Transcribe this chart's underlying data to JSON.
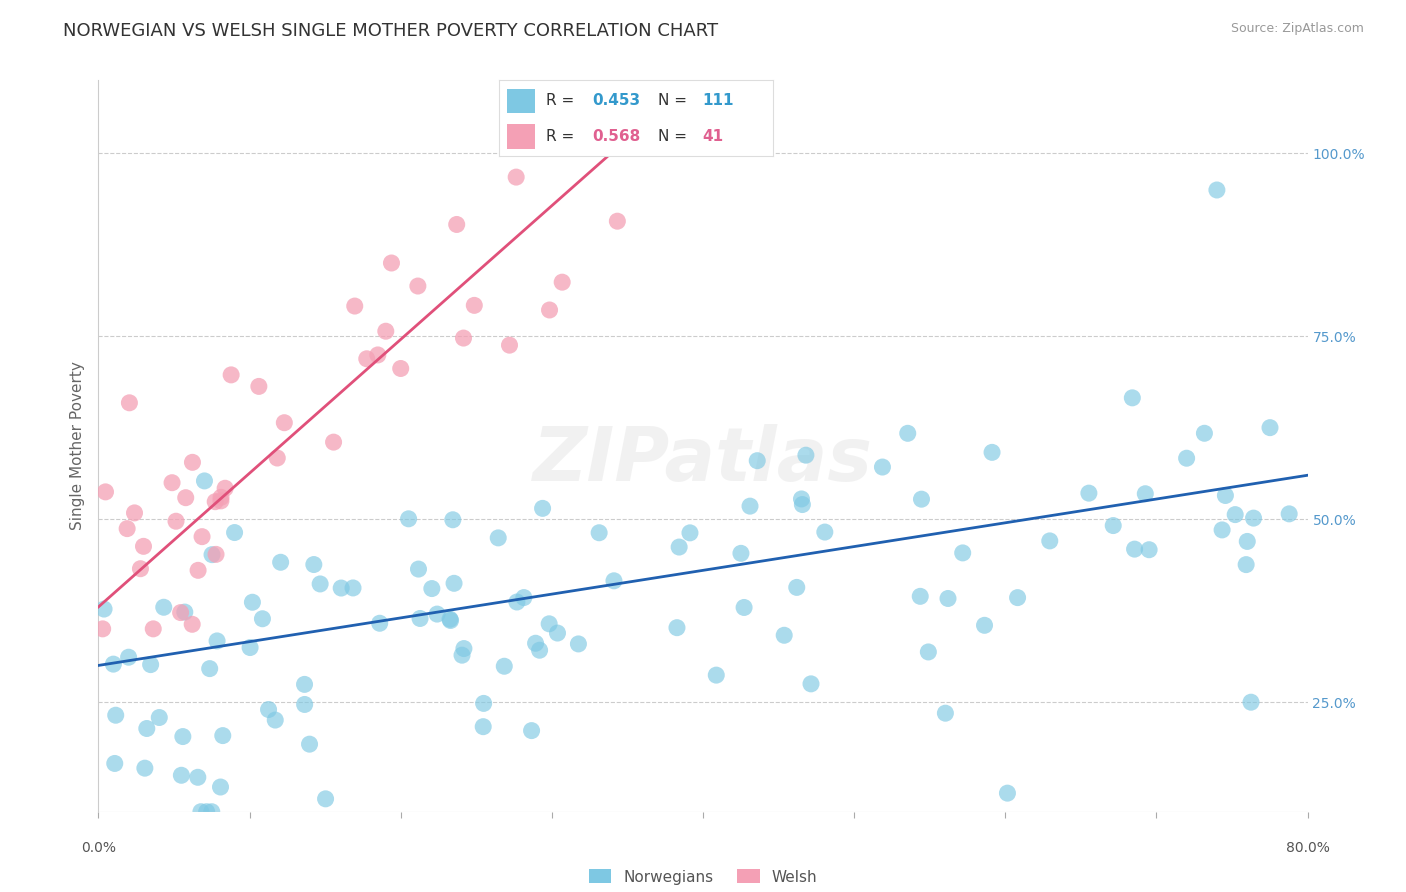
{
  "title": "NORWEGIAN VS WELSH SINGLE MOTHER POVERTY CORRELATION CHART",
  "source": "Source: ZipAtlas.com",
  "ylabel": "Single Mother Poverty",
  "y_ticks_right": [
    0.25,
    0.5,
    0.75,
    1.0
  ],
  "y_tick_labels_right": [
    "25.0%",
    "50.0%",
    "75.0%",
    "100.0%"
  ],
  "xlim": [
    0.0,
    0.8
  ],
  "ylim": [
    0.1,
    1.1
  ],
  "norwegian_R": 0.453,
  "norwegian_N": 111,
  "welsh_R": 0.568,
  "welsh_N": 41,
  "norwegian_color": "#7ec8e3",
  "welsh_color": "#f4a0b5",
  "norwegian_trend_color": "#2060b0",
  "welsh_trend_color": "#e0507a",
  "background_color": "#ffffff",
  "grid_color": "#cccccc",
  "title_fontsize": 13,
  "axis_label_fontsize": 11,
  "tick_fontsize": 10,
  "watermark": "ZIPatlas"
}
